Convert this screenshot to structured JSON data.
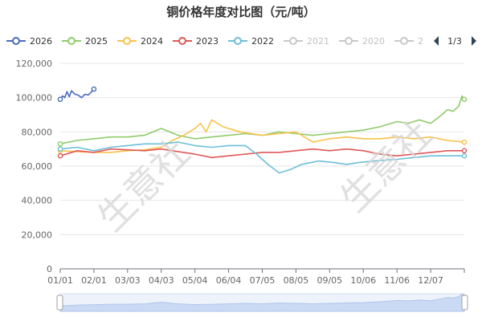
{
  "chart_data": {
    "type": "line",
    "title": "铜价格年度对比图（元/吨）",
    "xlabel": "",
    "ylabel": "",
    "x_ticks": [
      "01/01",
      "02/01",
      "03/03",
      "04/03",
      "05/04",
      "06/04",
      "07/05",
      "08/05",
      "09/05",
      "10/06",
      "11/06",
      "12/07"
    ],
    "y_ticks": [
      "0",
      "20,000",
      "40,000",
      "60,000",
      "80,000",
      "100,000",
      "120,000"
    ],
    "ylim": [
      0,
      120000
    ],
    "grid": true,
    "legend_placement": "top",
    "legend_page": "1/3",
    "watermark": "生意社",
    "colors": {
      "2026": "#4b6bbf",
      "2025": "#8fcb6a",
      "2024": "#f7c24b",
      "2023": "#e05858",
      "2022": "#6cbfd8",
      "inactive": "#c8c8c8"
    },
    "legend": [
      {
        "name": "2026",
        "active": true
      },
      {
        "name": "2025",
        "active": true
      },
      {
        "name": "2024",
        "active": true
      },
      {
        "name": "2023",
        "active": true
      },
      {
        "name": "2022",
        "active": true
      },
      {
        "name": "2021",
        "active": false
      },
      {
        "name": "2020",
        "active": false
      },
      {
        "name": "2",
        "active": false
      }
    ],
    "series": [
      {
        "name": "2026",
        "x": [
          0,
          2,
          4,
          6,
          8,
          10,
          13,
          16,
          19,
          22,
          25,
          28,
          30
        ],
        "y": [
          99000,
          101000,
          100000,
          103500,
          100500,
          104000,
          102000,
          101500,
          100000,
          102000,
          101500,
          103500,
          105000
        ]
      },
      {
        "name": "2025",
        "x": [
          0,
          15,
          30,
          45,
          60,
          75,
          90,
          105,
          120,
          135,
          150,
          165,
          180,
          195,
          210,
          225,
          240,
          255,
          270,
          285,
          300,
          310,
          320,
          330,
          340,
          345,
          350,
          355,
          358,
          360
        ],
        "y": [
          73000,
          75000,
          76000,
          77000,
          77000,
          78000,
          82000,
          78000,
          76000,
          77000,
          78000,
          79000,
          78000,
          80000,
          79000,
          78000,
          79000,
          80000,
          81000,
          83000,
          86000,
          85000,
          87000,
          85000,
          90000,
          93000,
          92000,
          95000,
          101000,
          99000
        ]
      },
      {
        "name": "2024",
        "x": [
          0,
          15,
          30,
          45,
          60,
          75,
          90,
          100,
          110,
          120,
          125,
          130,
          135,
          145,
          150,
          160,
          170,
          180,
          195,
          210,
          225,
          240,
          255,
          270,
          285,
          300,
          315,
          330,
          345,
          360
        ],
        "y": [
          69000,
          68500,
          68000,
          68000,
          69000,
          69500,
          71000,
          75000,
          78000,
          82000,
          85000,
          80000,
          87000,
          83000,
          82000,
          80000,
          79000,
          78000,
          79000,
          80000,
          74000,
          76000,
          77000,
          76000,
          76000,
          77000,
          76000,
          77000,
          75000,
          74000
        ]
      },
      {
        "name": "2023",
        "x": [
          0,
          15,
          30,
          45,
          60,
          75,
          90,
          105,
          120,
          135,
          150,
          165,
          180,
          195,
          210,
          225,
          240,
          255,
          270,
          285,
          300,
          315,
          330,
          345,
          360
        ],
        "y": [
          66000,
          69000,
          68000,
          70000,
          69500,
          69000,
          70000,
          68500,
          67000,
          65000,
          66000,
          67000,
          68000,
          68000,
          69000,
          70000,
          69000,
          70000,
          69000,
          67000,
          66000,
          67000,
          68000,
          69000,
          69000
        ]
      },
      {
        "name": "2022",
        "x": [
          0,
          15,
          30,
          45,
          60,
          75,
          90,
          105,
          120,
          135,
          150,
          165,
          175,
          185,
          195,
          205,
          215,
          230,
          245,
          255,
          265,
          280,
          300,
          315,
          330,
          345,
          360
        ],
        "y": [
          70000,
          71000,
          69000,
          71000,
          72000,
          73000,
          73000,
          74000,
          72000,
          71000,
          72000,
          72000,
          67000,
          61000,
          56000,
          58000,
          61000,
          63000,
          62000,
          61000,
          62000,
          63000,
          64000,
          65000,
          66000,
          66000,
          66000
        ]
      }
    ]
  }
}
